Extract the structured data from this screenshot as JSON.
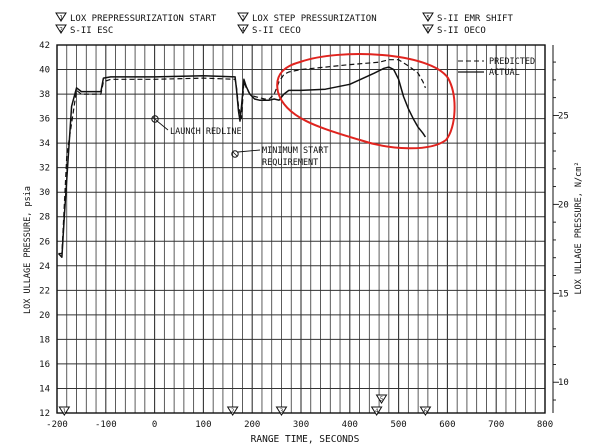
{
  "header": {
    "events": [
      {
        "symbol": "1",
        "label": "LOX PREPRESSURIZATION START"
      },
      {
        "symbol": "2",
        "label": "S-II ESC"
      },
      {
        "symbol": "3",
        "label": "LOX STEP PRESSURIZATION"
      },
      {
        "symbol": "4",
        "label": "S-II CECO"
      },
      {
        "symbol": "5",
        "label": "S-II EMR SHIFT"
      },
      {
        "symbol": "6",
        "label": "S-II OECO"
      }
    ]
  },
  "chart_data": {
    "type": "line",
    "xlabel": "RANGE TIME, SECONDS",
    "ylabel": "LOX ULLAGE PRESSURE, psia",
    "y2label": "LOX ULLAGE PRESSURE, N/cm²",
    "xlim": [
      -200,
      800
    ],
    "ylim": [
      12,
      42
    ],
    "y2lim": [
      8.27,
      28.96
    ],
    "x_ticks": [
      -200,
      -100,
      0,
      100,
      200,
      300,
      400,
      500,
      600,
      700,
      800
    ],
    "x_tick_labels": [
      "-200",
      "-100",
      "0",
      "100",
      "200",
      "300",
      "400",
      "500",
      "600",
      "700",
      "800"
    ],
    "y_ticks": [
      12,
      14,
      16,
      18,
      20,
      22,
      24,
      26,
      28,
      30,
      32,
      34,
      36,
      38,
      40,
      42
    ],
    "y2_ticks": [
      10,
      15,
      20,
      25
    ],
    "grid": true,
    "legend_position": "top-right",
    "series": [
      {
        "name": "PREDICTED",
        "style": "dashed",
        "x": [
          -197,
          -190,
          -180,
          -160,
          -150,
          -130,
          -110,
          -105,
          -90,
          0,
          100,
          165,
          168,
          172,
          178,
          183,
          188,
          195,
          205,
          215,
          225,
          235,
          245,
          255,
          265,
          275,
          300,
          350,
          400,
          460,
          480,
          500,
          520,
          540,
          550,
          555
        ],
        "y": [
          25,
          25,
          33,
          38.3,
          38.0,
          38.0,
          38.0,
          39.0,
          39.2,
          39.2,
          39.3,
          39.2,
          38.5,
          37.0,
          36.0,
          39.0,
          38.5,
          38.0,
          37.8,
          37.7,
          37.6,
          37.6,
          38.0,
          39.0,
          39.6,
          39.8,
          40.0,
          40.2,
          40.4,
          40.6,
          40.8,
          40.8,
          40.3,
          39.7,
          39.0,
          38.5
        ]
      },
      {
        "name": "ACTUAL",
        "style": "solid",
        "x": [
          -197,
          -190,
          -185,
          -170,
          -160,
          -150,
          -130,
          -110,
          -105,
          -90,
          0,
          100,
          165,
          168,
          172,
          175,
          178,
          183,
          188,
          195,
          205,
          215,
          225,
          235,
          245,
          255,
          265,
          275,
          300,
          350,
          400,
          450,
          470,
          480,
          490,
          500,
          510,
          520,
          530,
          540,
          550,
          555
        ],
        "y": [
          25,
          24.7,
          28,
          37,
          38.5,
          38.2,
          38.2,
          38.2,
          39.3,
          39.4,
          39.4,
          39.5,
          39.4,
          38.3,
          36.6,
          35.8,
          37.0,
          39.2,
          38.6,
          38.0,
          37.6,
          37.5,
          37.5,
          37.5,
          37.6,
          37.5,
          38.0,
          38.3,
          38.3,
          38.4,
          38.8,
          39.7,
          40.1,
          40.2,
          40.0,
          39.2,
          37.8,
          36.8,
          36.0,
          35.3,
          34.8,
          34.5
        ]
      }
    ],
    "annotations": [
      {
        "text": "LAUNCH REDLINE",
        "x": 0,
        "y": 36
      },
      {
        "text": "MINIMUM START",
        "x": 165,
        "y": 33.2
      },
      {
        "text": "REQUIREMENT",
        "x": 165,
        "y": 33.2
      }
    ],
    "event_markers": [
      {
        "symbol": "1",
        "x": -185
      },
      {
        "symbol": "2",
        "x": 160
      },
      {
        "symbol": "3",
        "x": 260
      },
      {
        "symbol": "4",
        "x": 455
      },
      {
        "symbol": "5",
        "x": 465
      },
      {
        "symbol": "6",
        "x": 555
      }
    ]
  },
  "colors": {
    "ink": "#111111",
    "grid": "#333333",
    "highlight": "#e0241f"
  }
}
